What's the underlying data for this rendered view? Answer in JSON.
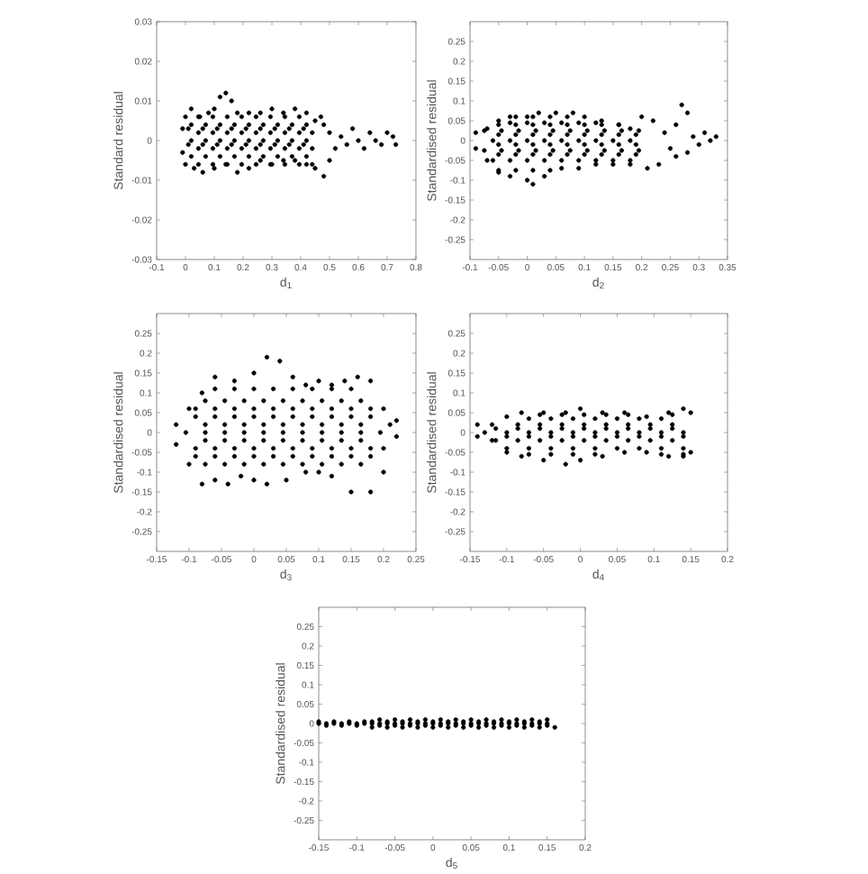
{
  "chart_data": [
    {
      "type": "scatter",
      "xlabel": "d$_{1}$",
      "ylabel": "Standard residual",
      "color": "#000000",
      "marker": "circle",
      "xlim": [
        -0.1,
        0.8
      ],
      "ylim": [
        -0.03,
        0.03
      ],
      "xticks": [
        -0.1,
        0,
        0.1,
        0.2,
        0.3,
        0.4,
        0.5,
        0.6,
        0.7,
        0.8
      ],
      "yticks": [
        -0.03,
        -0.02,
        -0.01,
        0,
        0.01,
        0.02,
        0.03
      ],
      "x": [
        -0.01,
        0,
        0.02,
        0.05,
        0.08,
        0.1,
        0.12,
        0.14,
        0.16,
        0.18,
        0.22,
        0.26,
        0.3,
        0.34,
        0.38,
        0.42,
        0.45,
        0.48,
        -0.01,
        0,
        0.03,
        0.06,
        0.1,
        0.14,
        0.18,
        0.22,
        0.26,
        0.3,
        0.34,
        0.38,
        0.42,
        0.45,
        0.48,
        0.02,
        0.07,
        0.12,
        0.17,
        0.22,
        0.27,
        0.32,
        0.37,
        0.42,
        0.045,
        0.095,
        0.145,
        0.195,
        0.245,
        0.295,
        0.345,
        0.395,
        0.44,
        0.02,
        0.07,
        0.12,
        0.17,
        0.22,
        0.27,
        0.32,
        0.37,
        0.42,
        0.045,
        0.095,
        0.145,
        0.195,
        0.245,
        0.295,
        0.345,
        0.395,
        0.44,
        0.02,
        0.07,
        0.12,
        0.17,
        0.22,
        0.27,
        0.32,
        0.37,
        0.42,
        0.5,
        0.52,
        0.54,
        0.56,
        0.58,
        0.6,
        0.62,
        0.64,
        0.66,
        0.68,
        0.7,
        0.72,
        0.73,
        0.5,
        0.47,
        0.045,
        0.095,
        0.145,
        0.195,
        0.245,
        0.295,
        0.345,
        0.395,
        0.44,
        0.045,
        0.095,
        0.145,
        0.195,
        0.245,
        0.295,
        0.345,
        0.395,
        0.01,
        0.06,
        0.11,
        0.16,
        0.21,
        0.26,
        0.31,
        0.36,
        0.41,
        0.01,
        0.06,
        0.11,
        0.16,
        0.21,
        0.26,
        0.31,
        0.36,
        0.41
      ],
      "values": [
        0.003,
        0.006,
        0.008,
        0.006,
        0.007,
        0.008,
        0.011,
        0.012,
        0.01,
        0.007,
        0.007,
        0.007,
        0.008,
        0.007,
        0.008,
        0.007,
        0.005,
        0.004,
        -0.003,
        -0.006,
        -0.007,
        -0.008,
        -0.007,
        -0.006,
        -0.008,
        -0.007,
        -0.005,
        -0.006,
        -0.005,
        -0.005,
        -0.006,
        -0.007,
        -0.009,
        -0.004,
        -0.004,
        -0.004,
        -0.004,
        -0.004,
        -0.004,
        -0.004,
        -0.004,
        -0.004,
        -0.002,
        -0.002,
        -0.002,
        -0.002,
        -0.002,
        -0.002,
        -0.002,
        -0.002,
        -0.002,
        0,
        0,
        0,
        0,
        0,
        0,
        0,
        0,
        0,
        0.002,
        0.002,
        0.002,
        0.002,
        0.002,
        0.002,
        0.002,
        0.002,
        0.002,
        0.004,
        0.004,
        0.004,
        0.004,
        0.004,
        0.004,
        0.004,
        0.004,
        0.004,
        0.002,
        -0.002,
        0.001,
        -0.001,
        0.003,
        0,
        -0.002,
        0.002,
        0,
        -0.001,
        0.002,
        0.001,
        -0.001,
        -0.005,
        0.006,
        -0.006,
        -0.006,
        -0.006,
        -0.006,
        -0.006,
        -0.006,
        -0.006,
        -0.006,
        -0.006,
        0.006,
        0.006,
        0.006,
        0.006,
        0.006,
        0.006,
        0.006,
        0.006,
        -0.001,
        -0.001,
        -0.001,
        -0.001,
        -0.001,
        -0.001,
        -0.001,
        -0.001,
        -0.001,
        0.003,
        0.003,
        0.003,
        0.003,
        0.003,
        0.003,
        0.003,
        0.003,
        0.003
      ]
    },
    {
      "type": "scatter",
      "xlabel": "d$_{2}$",
      "ylabel": "Standardised residual",
      "color": "#000000",
      "marker": "circle",
      "xlim": [
        -0.1,
        0.35
      ],
      "ylim": [
        -0.3,
        0.3
      ],
      "xticks": [
        -0.1,
        -0.05,
        0,
        0.05,
        0.1,
        0.15,
        0.2,
        0.25,
        0.3,
        0.35
      ],
      "yticks": [
        -0.25,
        -0.2,
        -0.15,
        -0.1,
        -0.05,
        0,
        0.05,
        0.1,
        0.15,
        0.2,
        0.25
      ],
      "x": [
        -0.09,
        -0.07,
        -0.05,
        -0.03,
        0,
        0.02,
        0.05,
        0.08,
        0.1,
        0.13,
        0.16,
        0.18,
        0.2,
        0.22,
        -0.09,
        -0.07,
        -0.05,
        -0.03,
        0,
        0.01,
        0.03,
        0.06,
        0.09,
        0.12,
        0.15,
        0.18,
        0.21,
        0.23,
        -0.06,
        -0.03,
        0,
        0.03,
        0.06,
        0.09,
        0.12,
        0.15,
        0.18,
        -0.075,
        -0.045,
        -0.015,
        0.015,
        0.045,
        0.075,
        0.105,
        0.135,
        0.165,
        0.195,
        -0.06,
        -0.03,
        0,
        0.03,
        0.06,
        0.09,
        0.12,
        0.15,
        0.18,
        -0.075,
        -0.045,
        -0.015,
        0.015,
        0.045,
        0.075,
        0.105,
        0.135,
        0.165,
        0.195,
        -0.03,
        0,
        0.03,
        0.06,
        0.09,
        0.12,
        0.24,
        0.25,
        0.26,
        0.27,
        0.28,
        0.29,
        0.3,
        0.31,
        0.32,
        0.33,
        0.26,
        0.28,
        -0.05,
        -0.02,
        0.01,
        0.04,
        -0.05,
        -0.02,
        0.01,
        0.04,
        0.07,
        0.1,
        0.13,
        0.16,
        0.19,
        -0.05,
        -0.02,
        0.01,
        0.04,
        0.07,
        0.1,
        0.13,
        0.16,
        0.19,
        -0.05,
        -0.02,
        0.01,
        0.04,
        0.07,
        0.1,
        0.13,
        0.16,
        0.19,
        -0.05,
        -0.02,
        0.01,
        0.04,
        0.07,
        0.1,
        0.13,
        0.16,
        -0.02,
        0.01,
        0.04,
        0.07
      ],
      "values": [
        0.02,
        0.03,
        0.05,
        0.06,
        0.06,
        0.07,
        0.07,
        0.07,
        0.06,
        0.05,
        0.04,
        0.03,
        0.06,
        0.05,
        -0.02,
        -0.05,
        -0.08,
        -0.09,
        -0.1,
        -0.11,
        -0.09,
        -0.07,
        -0.07,
        -0.06,
        -0.06,
        -0.06,
        -0.07,
        -0.06,
        -0.05,
        -0.05,
        -0.05,
        -0.05,
        -0.05,
        -0.05,
        -0.05,
        -0.05,
        -0.05,
        -0.025,
        -0.025,
        -0.025,
        -0.025,
        -0.025,
        -0.025,
        -0.025,
        -0.025,
        -0.025,
        -0.025,
        0,
        0,
        0,
        0,
        0,
        0,
        0,
        0,
        0,
        0.025,
        0.025,
        0.025,
        0.025,
        0.025,
        0.025,
        0.025,
        0.025,
        0.025,
        0.025,
        0.045,
        0.045,
        0.045,
        0.045,
        0.045,
        0.045,
        0.02,
        -0.02,
        0.04,
        0.09,
        0.07,
        0.01,
        -0.01,
        0.02,
        0,
        0.01,
        -0.04,
        -0.03,
        -0.075,
        -0.075,
        -0.075,
        -0.075,
        -0.035,
        -0.035,
        -0.035,
        -0.035,
        -0.035,
        -0.035,
        -0.035,
        -0.035,
        -0.035,
        -0.01,
        -0.01,
        -0.01,
        -0.01,
        -0.01,
        -0.01,
        -0.01,
        -0.01,
        -0.01,
        0.015,
        0.015,
        0.015,
        0.015,
        0.015,
        0.015,
        0.015,
        0.015,
        0.015,
        0.04,
        0.04,
        0.04,
        0.04,
        0.04,
        0.04,
        0.04,
        0.04,
        0.06,
        0.06,
        0.06,
        0.06
      ]
    },
    {
      "type": "scatter",
      "xlabel": "d$_{3}$",
      "ylabel": "Standardised residual",
      "color": "#000000",
      "marker": "circle",
      "xlim": [
        -0.15,
        0.25
      ],
      "ylim": [
        -0.3,
        0.3
      ],
      "xticks": [
        -0.15,
        -0.1,
        -0.05,
        0,
        0.05,
        0.1,
        0.15,
        0.2,
        0.25
      ],
      "yticks": [
        -0.25,
        -0.2,
        -0.15,
        -0.1,
        -0.05,
        0,
        0.05,
        0.1,
        0.15,
        0.2,
        0.25
      ],
      "x": [
        -0.12,
        -0.1,
        -0.08,
        -0.06,
        -0.03,
        0,
        0.02,
        0.04,
        0.06,
        0.08,
        0.1,
        0.12,
        0.14,
        0.16,
        0.18,
        0.2,
        -0.12,
        -0.1,
        -0.08,
        -0.06,
        -0.04,
        -0.02,
        0,
        0.02,
        0.05,
        0.08,
        0.1,
        0.12,
        0.15,
        0.18,
        0.2,
        -0.075,
        -0.045,
        -0.015,
        0.015,
        0.045,
        0.075,
        0.105,
        0.135,
        0.165,
        -0.09,
        -0.06,
        -0.03,
        0,
        0.03,
        0.06,
        0.09,
        0.12,
        0.15,
        0.18,
        -0.105,
        -0.075,
        -0.045,
        -0.015,
        0.015,
        0.045,
        0.075,
        0.105,
        0.135,
        0.165,
        0.195,
        -0.09,
        -0.06,
        -0.03,
        0,
        0.03,
        0.06,
        0.09,
        0.12,
        0.15,
        0.18,
        -0.075,
        -0.045,
        -0.015,
        0.015,
        0.045,
        0.075,
        0.105,
        0.135,
        0.165,
        0.21,
        0.22,
        0.22,
        0.2,
        -0.09,
        -0.06,
        -0.03,
        0,
        0.03,
        0.06,
        0.09,
        0.12,
        0.15,
        0.18,
        -0.075,
        -0.045,
        -0.015,
        0.015,
        0.045,
        0.075,
        0.105,
        0.135,
        0.165,
        -0.075,
        -0.045,
        -0.015,
        0.015,
        0.045,
        0.075,
        0.105,
        0.135,
        0.165,
        -0.09,
        -0.06,
        -0.03,
        0,
        0.03,
        0.06,
        0.09,
        0.12,
        0.15,
        0.18,
        -0.06,
        -0.03,
        0,
        0.03,
        0.06,
        0.09,
        0.12,
        0.15
      ],
      "values": [
        0.02,
        0.06,
        0.1,
        0.14,
        0.13,
        0.15,
        0.19,
        0.18,
        0.14,
        0.12,
        0.13,
        0.12,
        0.13,
        0.14,
        0.13,
        0.06,
        -0.03,
        -0.08,
        -0.13,
        -0.12,
        -0.13,
        -0.11,
        -0.12,
        -0.13,
        -0.12,
        -0.1,
        -0.1,
        -0.11,
        -0.15,
        -0.15,
        -0.1,
        -0.08,
        -0.08,
        -0.08,
        -0.08,
        -0.08,
        -0.08,
        -0.08,
        -0.08,
        -0.08,
        -0.04,
        -0.04,
        -0.04,
        -0.04,
        -0.04,
        -0.04,
        -0.04,
        -0.04,
        -0.04,
        -0.04,
        0,
        0,
        0,
        0,
        0,
        0,
        0,
        0,
        0,
        0,
        0,
        0.04,
        0.04,
        0.04,
        0.04,
        0.04,
        0.04,
        0.04,
        0.04,
        0.04,
        0.04,
        0.08,
        0.08,
        0.08,
        0.08,
        0.08,
        0.08,
        0.08,
        0.08,
        0.08,
        0.02,
        -0.01,
        0.03,
        -0.04,
        -0.06,
        -0.06,
        -0.06,
        -0.06,
        -0.06,
        -0.06,
        -0.06,
        -0.06,
        -0.06,
        -0.06,
        -0.02,
        -0.02,
        -0.02,
        -0.02,
        -0.02,
        -0.02,
        -0.02,
        -0.02,
        -0.02,
        0.02,
        0.02,
        0.02,
        0.02,
        0.02,
        0.02,
        0.02,
        0.02,
        0.02,
        0.06,
        0.06,
        0.06,
        0.06,
        0.06,
        0.06,
        0.06,
        0.06,
        0.06,
        0.06,
        0.11,
        0.11,
        0.11,
        0.11,
        0.11,
        0.11,
        0.11,
        0.11
      ]
    },
    {
      "type": "scatter",
      "xlabel": "d$_{4}$",
      "ylabel": "Standardised residual",
      "color": "#000000",
      "marker": "circle",
      "xlim": [
        -0.15,
        0.2
      ],
      "ylim": [
        -0.3,
        0.3
      ],
      "xticks": [
        -0.15,
        -0.1,
        -0.05,
        0,
        0.05,
        0.1,
        0.15,
        0.2
      ],
      "yticks": [
        -0.25,
        -0.2,
        -0.15,
        -0.1,
        -0.05,
        0,
        0.05,
        0.1,
        0.15,
        0.2,
        0.25
      ],
      "x": [
        -0.14,
        -0.12,
        -0.1,
        -0.08,
        -0.05,
        -0.02,
        0,
        0.03,
        0.06,
        0.09,
        0.12,
        0.14,
        0.15,
        -0.14,
        -0.12,
        -0.1,
        -0.08,
        -0.05,
        -0.02,
        0,
        0.03,
        0.06,
        0.09,
        0.12,
        0.14,
        0.15,
        -0.1,
        -0.07,
        -0.04,
        -0.01,
        0.02,
        0.05,
        0.08,
        0.11,
        0.14,
        -0.115,
        -0.085,
        -0.055,
        -0.025,
        0.005,
        0.035,
        0.065,
        0.095,
        0.125,
        -0.13,
        -0.1,
        -0.07,
        -0.04,
        -0.01,
        0.02,
        0.05,
        0.08,
        0.11,
        0.14,
        -0.085,
        -0.055,
        -0.025,
        0.005,
        0.035,
        0.065,
        0.095,
        0.125,
        -0.07,
        -0.04,
        -0.01,
        0.02,
        0.05,
        0.08,
        0.11,
        -0.07,
        -0.04,
        -0.01,
        0.02,
        0.11,
        0.14,
        -0.1,
        -0.07,
        -0.04,
        -0.01,
        0.02,
        0.05,
        0.08,
        0.11,
        0.14,
        -0.115,
        -0.085,
        -0.055,
        -0.025,
        0.005,
        0.035,
        0.065,
        0.095,
        0.125,
        -0.055,
        -0.025,
        0.005,
        0.035,
        0.065,
        0.125
      ],
      "values": [
        0.02,
        0.02,
        0.04,
        0.05,
        0.05,
        0.05,
        0.06,
        0.05,
        0.05,
        0.04,
        0.05,
        0.06,
        0.05,
        -0.01,
        -0.02,
        -0.05,
        -0.06,
        -0.07,
        -0.08,
        -0.07,
        -0.06,
        -0.05,
        -0.05,
        -0.06,
        -0.06,
        -0.05,
        -0.04,
        -0.04,
        -0.04,
        -0.04,
        -0.04,
        -0.04,
        -0.04,
        -0.04,
        -0.04,
        -0.02,
        -0.02,
        -0.02,
        -0.02,
        -0.02,
        -0.02,
        -0.02,
        -0.02,
        -0.02,
        0,
        0,
        0,
        0,
        0,
        0,
        0,
        0,
        0,
        0,
        0.02,
        0.02,
        0.02,
        0.02,
        0.02,
        0.02,
        0.02,
        0.02,
        0.035,
        0.035,
        0.035,
        0.035,
        0.035,
        0.035,
        0.035,
        -0.055,
        -0.055,
        -0.055,
        -0.055,
        -0.055,
        -0.055,
        -0.01,
        -0.01,
        -0.01,
        -0.01,
        -0.01,
        -0.01,
        -0.01,
        -0.01,
        -0.01,
        0.01,
        0.01,
        0.01,
        0.01,
        0.01,
        0.01,
        0.01,
        0.01,
        0.01,
        0.045,
        0.045,
        0.045,
        0.045,
        0.045,
        0.045
      ]
    },
    {
      "type": "scatter",
      "xlabel": "d$_{5}$",
      "ylabel": "Standardised residual",
      "color": "#000000",
      "marker": "circle",
      "xlim": [
        -0.15,
        0.2
      ],
      "ylim": [
        -0.3,
        0.3
      ],
      "xticks": [
        -0.15,
        -0.1,
        -0.05,
        0,
        0.05,
        0.1,
        0.15,
        0.2
      ],
      "yticks": [
        -0.25,
        -0.2,
        -0.15,
        -0.1,
        -0.05,
        0,
        0.05,
        0.1,
        0.15,
        0.2,
        0.25
      ],
      "x": [
        -0.15,
        -0.14,
        -0.13,
        -0.12,
        -0.11,
        -0.1,
        -0.09,
        -0.08,
        -0.07,
        -0.06,
        -0.05,
        -0.04,
        -0.03,
        -0.02,
        -0.01,
        0,
        0.01,
        0.02,
        0.03,
        0.04,
        0.05,
        0.06,
        0.07,
        0.08,
        0.09,
        0.1,
        0.11,
        0.12,
        0.13,
        0.14,
        0.15,
        -0.15,
        -0.13,
        -0.11,
        -0.09,
        -0.07,
        -0.05,
        -0.03,
        -0.01,
        0.01,
        0.03,
        0.05,
        0.07,
        0.09,
        0.11,
        0.13,
        0.15,
        -0.14,
        -0.12,
        -0.1,
        -0.08,
        -0.06,
        -0.04,
        -0.02,
        0,
        0.02,
        0.04,
        0.06,
        0.08,
        0.1,
        0.12,
        0.14,
        0.16,
        -0.08,
        -0.06,
        -0.04,
        -0.02,
        0,
        0.02,
        0.04,
        0.06,
        0.08,
        0.1,
        0.12,
        0.14,
        -0.07,
        -0.05,
        -0.03,
        -0.01,
        0.01,
        0.03,
        0.05,
        0.07,
        0.09,
        0.11,
        0.13,
        0.15
      ],
      "values": [
        0,
        0,
        0,
        0,
        0,
        0,
        0,
        0,
        0,
        0,
        0,
        0,
        0,
        0,
        0,
        0,
        0,
        0,
        0,
        0,
        0,
        0,
        0,
        0,
        0,
        0,
        0,
        0,
        0,
        0,
        0,
        0.005,
        0.005,
        0.005,
        0.005,
        0.01,
        0.01,
        0.01,
        0.01,
        0.01,
        0.01,
        0.01,
        0.01,
        0.01,
        0.01,
        0.01,
        0.01,
        -0.005,
        -0.005,
        -0.005,
        -0.01,
        -0.01,
        -0.01,
        -0.01,
        -0.01,
        -0.01,
        -0.01,
        -0.01,
        -0.01,
        -0.01,
        -0.01,
        -0.01,
        -0.01,
        0.005,
        0.005,
        0.005,
        0.005,
        0.005,
        0.005,
        0.005,
        0.005,
        0.005,
        0.005,
        0.005,
        0.005,
        -0.005,
        -0.005,
        -0.005,
        -0.005,
        -0.005,
        -0.005,
        -0.005,
        -0.005,
        -0.005,
        -0.005,
        -0.005,
        -0.005
      ]
    }
  ]
}
